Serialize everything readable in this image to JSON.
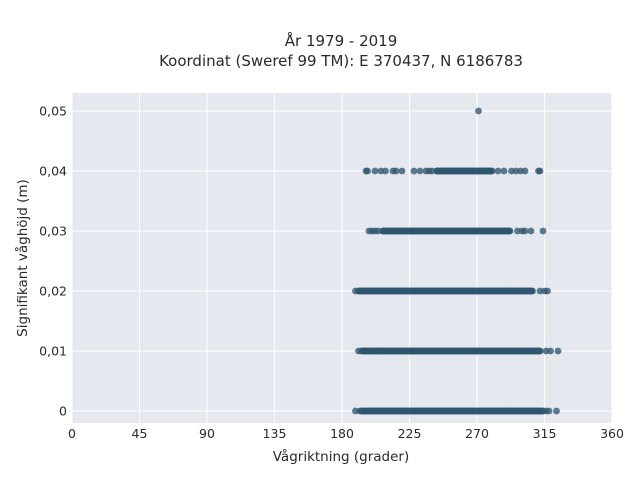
{
  "chart_data": {
    "type": "scatter",
    "title_line1": "År 1979 - 2019",
    "title_line2": "Koordinat (Sweref 99 TM): E 370437, N 6186783",
    "xlabel": "Vågriktning (grader)",
    "ylabel": "Signifikant våghöjd (m)",
    "xlim": [
      0,
      360
    ],
    "ylim": [
      -0.002,
      0.053
    ],
    "xticks": [
      0,
      45,
      90,
      135,
      180,
      225,
      270,
      315,
      360
    ],
    "xtick_labels": [
      "0",
      "45",
      "90",
      "135",
      "180",
      "225",
      "270",
      "315",
      "360"
    ],
    "yticks": [
      0,
      0.01,
      0.02,
      0.03,
      0.04,
      0.05
    ],
    "ytick_labels": [
      "0",
      "0,01",
      "0,02",
      "0,03",
      "0,04",
      "0,05"
    ],
    "grid": true,
    "background": "#e5e8ef",
    "grid_color": "#ffffff",
    "marker_color": "#2f5670",
    "rows": [
      {
        "y": 0.0,
        "dense_from": 193,
        "dense_to": 314,
        "sparse": [
          189,
          192,
          316,
          318,
          323
        ]
      },
      {
        "y": 0.01,
        "dense_from": 193,
        "dense_to": 312,
        "sparse": [
          191,
          316,
          319,
          324
        ]
      },
      {
        "y": 0.02,
        "dense_from": 191,
        "dense_to": 307,
        "sparse": [
          189,
          312,
          315,
          317
        ]
      },
      {
        "y": 0.03,
        "dense_from": 207,
        "dense_to": 292,
        "sparse": [
          198,
          200,
          202,
          204,
          297,
          300,
          302,
          306,
          314
        ]
      },
      {
        "y": 0.04,
        "dense_from": 243,
        "dense_to": 280,
        "sparse": [
          196,
          197,
          202,
          206,
          209,
          214,
          216,
          220,
          228,
          232,
          236,
          238,
          240,
          284,
          288,
          293,
          296,
          299,
          302,
          311,
          312
        ]
      },
      {
        "y": 0.05,
        "dense_from": null,
        "dense_to": null,
        "sparse": [
          271
        ]
      }
    ]
  }
}
